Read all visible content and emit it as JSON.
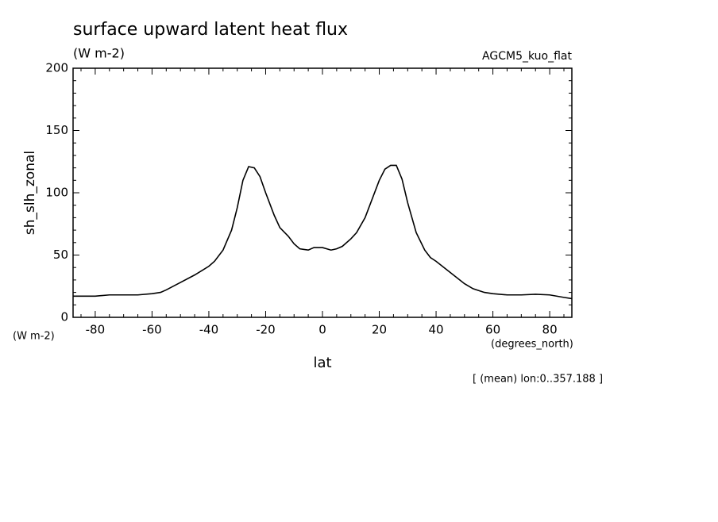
{
  "chart_data": {
    "type": "line",
    "title": "surface upward latent heat flux",
    "subtitle": "(W m-2)",
    "model_label": "AGCM5_kuo_flat",
    "y_label": "sh_slh_zonal",
    "y_unit": "(W m-2)",
    "x_unit": "(degrees_north)",
    "x_label": "lat",
    "annotation": "[ (mean) lon:0..357.188 ]",
    "x": [
      -87.8,
      -80,
      -75,
      -65,
      -60,
      -57,
      -55,
      -50,
      -45,
      -40,
      -38,
      -35,
      -32,
      -30,
      -28,
      -26,
      -24,
      -22,
      -20,
      -17,
      -15,
      -12,
      -10,
      -8,
      -5,
      -3,
      0,
      3,
      5,
      7,
      10,
      12,
      15,
      17,
      20,
      22,
      24,
      26,
      28,
      30,
      33,
      36,
      38,
      40,
      45,
      50,
      53,
      57,
      60,
      65,
      70,
      75,
      80,
      85,
      87.8
    ],
    "series": [
      {
        "name": "sh_slh_zonal",
        "color": "#000000",
        "values": [
          17,
          17,
          18,
          18,
          19,
          20,
          22,
          28,
          34,
          41,
          45,
          54,
          70,
          88,
          110,
          121,
          120,
          113,
          100,
          82,
          72,
          65,
          59,
          55,
          54,
          56,
          56,
          54,
          55,
          57,
          63,
          68,
          80,
          92,
          110,
          119,
          122,
          122,
          111,
          92,
          68,
          54,
          48,
          45,
          36,
          27,
          23,
          20,
          19,
          18,
          18,
          18.5,
          18,
          16,
          15
        ]
      }
    ],
    "xlim": [
      -87.8,
      87.8
    ],
    "ylim": [
      0,
      200
    ],
    "xticks": [
      -80,
      -60,
      -40,
      -20,
      0,
      20,
      40,
      60,
      80
    ],
    "yticks": [
      0,
      50,
      100,
      150,
      200
    ],
    "xminorticks": [
      -85,
      -75,
      -70,
      -65,
      -55,
      -50,
      -45,
      -35,
      -30,
      -25,
      -15,
      -10,
      -5,
      5,
      10,
      15,
      25,
      30,
      35,
      45,
      50,
      55,
      65,
      70,
      75,
      85
    ],
    "yminorticks": [
      10,
      20,
      30,
      40,
      60,
      70,
      80,
      90,
      110,
      120,
      130,
      140,
      160,
      170,
      180,
      190
    ]
  }
}
